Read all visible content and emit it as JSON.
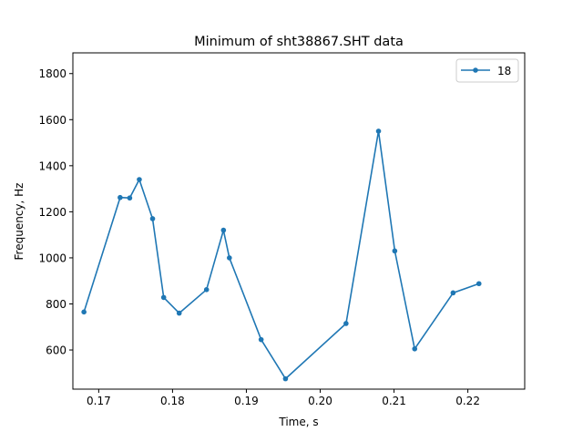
{
  "chart_data": {
    "type": "line",
    "title": "Minimum of sht38867.SHT data",
    "xlabel": "Time, s",
    "ylabel": "Frequency, Hz",
    "xlim": [
      0.1665,
      0.2277
    ],
    "ylim": [
      430,
      1890
    ],
    "xticks": [
      0.17,
      0.18,
      0.19,
      0.2,
      0.21,
      0.22
    ],
    "xtick_labels": [
      "0.17",
      "0.18",
      "0.19",
      "0.20",
      "0.21",
      "0.22"
    ],
    "yticks": [
      600,
      800,
      1000,
      1200,
      1400,
      1600,
      1800
    ],
    "ytick_labels": [
      "600",
      "800",
      "1000",
      "1200",
      "1400",
      "1600",
      "1800"
    ],
    "grid": false,
    "legend": {
      "position": "top-right"
    },
    "series": [
      {
        "name": "18",
        "color": "#1f77b4",
        "marker": "circle",
        "x": [
          0.168,
          0.1729,
          0.1742,
          0.1755,
          0.1773,
          0.1788,
          0.1809,
          0.1846,
          0.1869,
          0.1877,
          0.192,
          0.1953,
          0.2035,
          0.2079,
          0.2101,
          0.2128,
          0.218,
          0.2215
        ],
        "y": [
          765,
          1262,
          1260,
          1340,
          1170,
          828,
          760,
          862,
          1120,
          1000,
          645,
          475,
          715,
          1550,
          1030,
          605,
          848,
          888
        ]
      }
    ]
  }
}
